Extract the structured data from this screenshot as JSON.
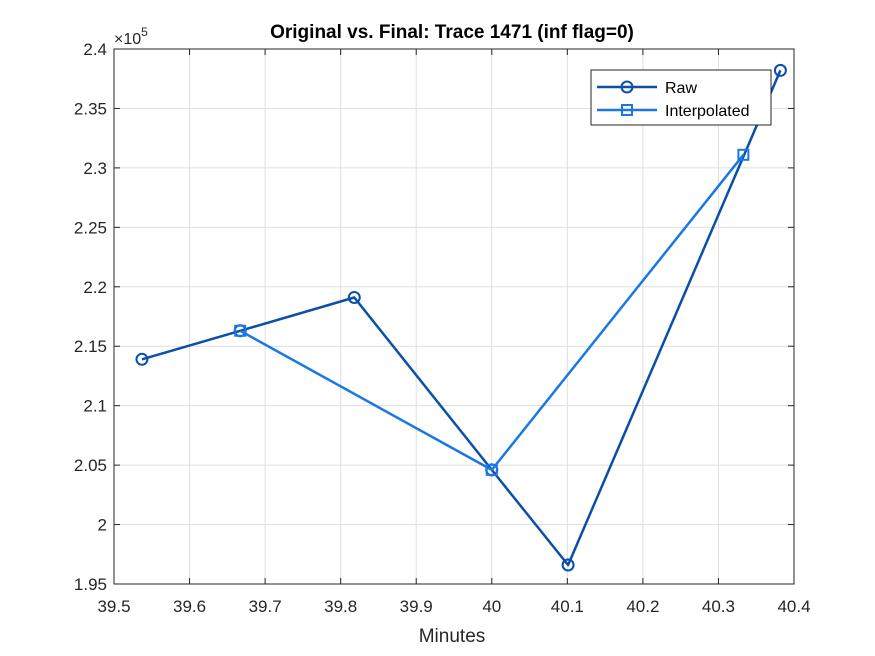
{
  "chart_data": {
    "type": "line",
    "title": "Original vs. Final: Trace 1471 (inf flag=0)",
    "xlabel": "Minutes",
    "ylabel": "",
    "xlim": [
      39.5,
      40.4
    ],
    "ylim": [
      1.95,
      2.4
    ],
    "y_multiplier_base": "×10",
    "y_multiplier_exponent": "5",
    "x_ticks": [
      39.5,
      39.6,
      39.7,
      39.8,
      39.9,
      40.0,
      40.1,
      40.2,
      40.3,
      40.4
    ],
    "x_tick_labels": [
      "39.5",
      "39.6",
      "39.7",
      "39.8",
      "39.9",
      "40",
      "40.1",
      "40.2",
      "40.3",
      "40.4"
    ],
    "y_ticks": [
      1.95,
      2.0,
      2.05,
      2.1,
      2.15,
      2.2,
      2.25,
      2.3,
      2.35,
      2.4
    ],
    "y_tick_labels": [
      "1.95",
      "2",
      "2.05",
      "2.1",
      "2.15",
      "2.2",
      "2.25",
      "2.3",
      "2.35",
      "2.4"
    ],
    "grid": true,
    "legend_position": "top-right",
    "series": [
      {
        "name": "Raw",
        "marker": "circle",
        "color": "#0a4fa8",
        "x": [
          39.537,
          39.667,
          39.818,
          40.0,
          40.101,
          40.382
        ],
        "y": [
          2.139,
          2.163,
          2.191,
          2.046,
          1.966,
          2.382
        ]
      },
      {
        "name": "Interpolated",
        "marker": "square",
        "color": "#1a78e6",
        "x": [
          39.667,
          40.0,
          40.333
        ],
        "y": [
          2.163,
          2.046,
          2.311
        ]
      }
    ]
  }
}
